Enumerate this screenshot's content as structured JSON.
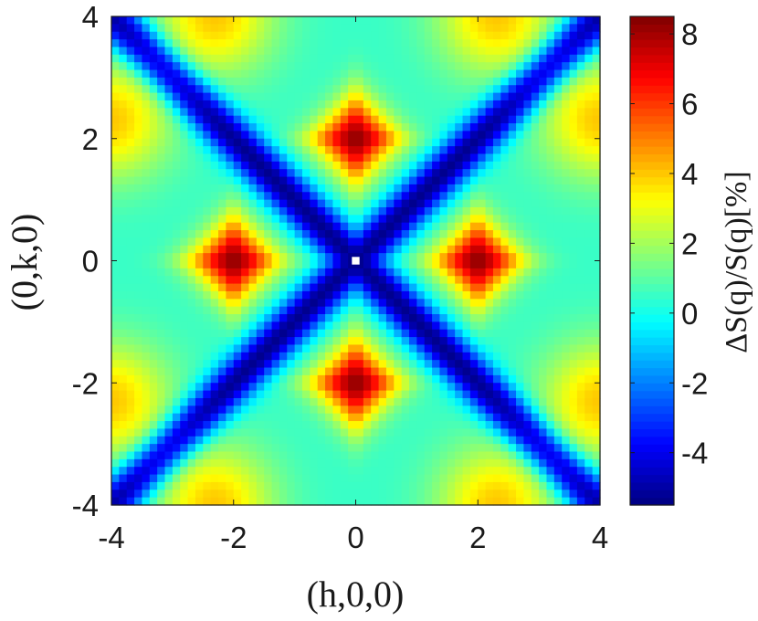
{
  "chart_data": {
    "type": "heatmap",
    "title": "",
    "xlabel": "(h,0,0)",
    "ylabel": "(0,k,0)",
    "xlim": [
      -4,
      4
    ],
    "ylim": [
      -4,
      4
    ],
    "xticks": [
      -4,
      -2,
      0,
      2,
      4
    ],
    "yticks": [
      -4,
      -2,
      0,
      2,
      4
    ],
    "xtick_labels": [
      "-4",
      "-2",
      "0",
      "2",
      "4"
    ],
    "ytick_labels": [
      "-4",
      "-2",
      "0",
      "2",
      "4"
    ],
    "colorbar": {
      "label": "ΔS(q)/S(q)[%]",
      "range": [
        -5.5,
        8.5
      ],
      "ticks": [
        -4,
        -2,
        0,
        2,
        4,
        6,
        8
      ],
      "tick_labels": [
        "-4",
        "-2",
        "0",
        "2",
        "4",
        "6",
        "8"
      ],
      "colormap": "jet"
    },
    "grid": false,
    "resolution": 64,
    "features": {
      "peak_centers": [
        [
          2,
          0
        ],
        [
          -2,
          0
        ],
        [
          0,
          2
        ],
        [
          0,
          -2
        ]
      ],
      "peak_value": 8.3,
      "minimum_lines": [
        "k = h",
        "k = -h"
      ],
      "minimum_value": -5.3,
      "background_value": 0.5,
      "corner_value": 4,
      "masked_point": [
        0,
        0
      ]
    }
  }
}
